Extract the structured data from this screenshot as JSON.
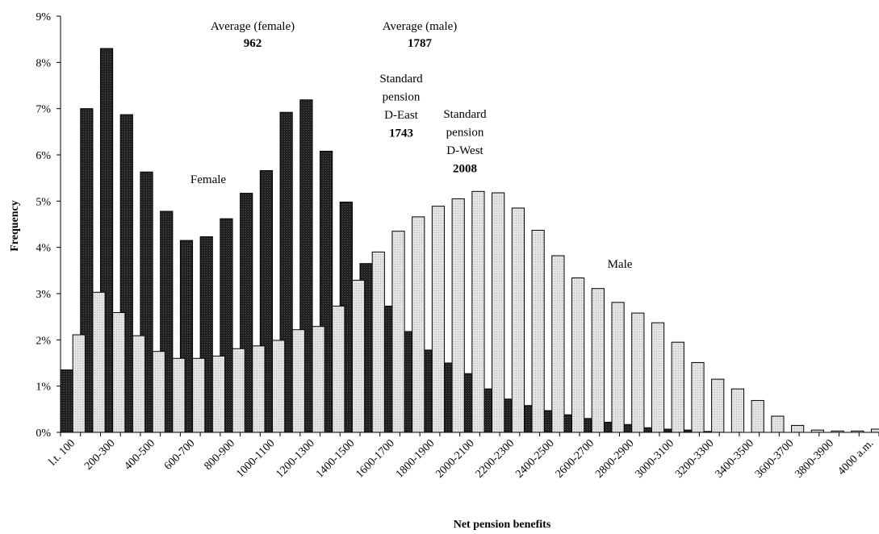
{
  "chart_data": {
    "type": "bar",
    "xlabel": "Net pension benefits",
    "ylabel": "Frequency",
    "ylim": [
      0,
      9
    ],
    "yticks": [
      "0%",
      "1%",
      "2%",
      "3%",
      "4%",
      "5%",
      "6%",
      "7%",
      "8%",
      "9%"
    ],
    "grid": false,
    "categories": [
      "l.t. 100",
      "100-200",
      "200-300",
      "300-400",
      "400-500",
      "500-600",
      "600-700",
      "700-800",
      "800-900",
      "900-1000",
      "1000-1100",
      "1100-1200",
      "1200-1300",
      "1300-1400",
      "1400-1500",
      "1500-1600",
      "1600-1700",
      "1700-1800",
      "1800-1900",
      "1900-2000",
      "2000-2100",
      "2100-2200",
      "2200-2300",
      "2300-2400",
      "2400-2500",
      "2500-2600",
      "2600-2700",
      "2700-2800",
      "2800-2900",
      "2900-3000",
      "3000-3100",
      "3100-3200",
      "3200-3300",
      "3300-3400",
      "3400-3500",
      "3500-3600",
      "3600-3700",
      "3700-3800",
      "3800-3900",
      "3900-4000",
      "4000 a.m."
    ],
    "visible_tick_labels": [
      "l.t. 100",
      "200-300",
      "400-500",
      "600-700",
      "800-900",
      "1000-1100",
      "1200-1300",
      "1400-1500",
      "1600-1700",
      "1800-1900",
      "2000-2100",
      "2200-2300",
      "2400-2500",
      "2600-2700",
      "2800-2900",
      "3000-3100",
      "3200-3300",
      "3400-3500",
      "3600-3700",
      "3800-3900",
      "4000 a.m."
    ],
    "series": [
      {
        "name": "Female",
        "color": "#222222",
        "values": [
          1.35,
          7.0,
          8.3,
          6.87,
          5.63,
          4.78,
          4.15,
          4.23,
          4.62,
          5.17,
          5.66,
          6.92,
          7.19,
          6.08,
          4.98,
          3.65,
          2.73,
          2.18,
          1.78,
          1.5,
          1.27,
          0.94,
          0.72,
          0.58,
          0.47,
          0.38,
          0.3,
          0.22,
          0.17,
          0.1,
          0.07,
          0.05,
          0.02,
          0.0,
          0.0,
          0.0,
          0.0,
          0.0,
          0.0,
          0.0,
          0.0
        ]
      },
      {
        "name": "Male",
        "color": "#d9d9d9",
        "values": [
          2.11,
          3.03,
          2.59,
          2.09,
          1.75,
          1.6,
          1.6,
          1.65,
          1.81,
          1.87,
          1.99,
          2.22,
          2.29,
          2.73,
          3.29,
          3.9,
          4.35,
          4.66,
          4.89,
          5.05,
          5.21,
          5.18,
          4.85,
          4.37,
          3.82,
          3.34,
          3.11,
          2.81,
          2.58,
          2.37,
          1.95,
          1.51,
          1.15,
          0.94,
          0.69,
          0.35,
          0.15,
          0.05,
          0.03,
          0.03,
          0.07
        ]
      }
    ],
    "annotations": [
      {
        "lines": [
          "Average (female)"
        ],
        "value": "962"
      },
      {
        "lines": [
          "Average (male)"
        ],
        "value": "1787"
      },
      {
        "lines": [
          "Standard",
          "pension",
          "D-East"
        ],
        "value": "1743"
      },
      {
        "lines": [
          "Standard",
          "pension",
          "D-West"
        ],
        "value": "2008"
      },
      {
        "lines": [
          "Female"
        ],
        "value": ""
      },
      {
        "lines": [
          "Male"
        ],
        "value": ""
      }
    ]
  }
}
